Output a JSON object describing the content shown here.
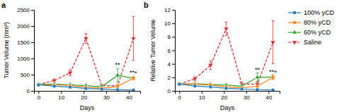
{
  "chart_data": [
    {
      "type": "line",
      "title": "a",
      "x_label": "Days",
      "y_label": "Tumor Volume (mm³)",
      "x": [
        0,
        7,
        14,
        21,
        28,
        35,
        42
      ],
      "xlim": [
        -2,
        45
      ],
      "xticks": [
        0,
        10,
        20,
        30,
        40
      ],
      "ylim": [
        0,
        2500
      ],
      "yticks": [
        0,
        500,
        1000,
        1500,
        2000,
        2500
      ],
      "series": [
        {
          "marker": "square",
          "line_style": "solid",
          "values": [
            185,
            145,
            115,
            75,
            55,
            35,
            25
          ],
          "errors": [
            22,
            18,
            14,
            10,
            8,
            7,
            6
          ]
        },
        {
          "marker": "square",
          "line_style": "solid",
          "values": [
            185,
            185,
            165,
            110,
            85,
            140,
            395
          ],
          "errors": [
            22,
            22,
            18,
            14,
            15,
            28,
            50
          ]
        },
        {
          "marker": "triangle-up",
          "line_style": "solid",
          "values": [
            200,
            210,
            190,
            160,
            130,
            480,
            390
          ],
          "errors": [
            25,
            25,
            20,
            18,
            20,
            200,
            55
          ]
        },
        {
          "marker": "triangle-down",
          "line_style": "dashed",
          "values": [
            200,
            320,
            560,
            1620,
            160,
            160,
            1620
          ],
          "errors": [
            30,
            50,
            90,
            150,
            40,
            40,
            680
          ]
        }
      ],
      "annotations": [
        {
          "text": "**",
          "x": 35,
          "y": 735
        },
        {
          "text": "**",
          "x": 42.5,
          "y": 500
        },
        {
          "text": "*",
          "x": 42.5,
          "y": 475
        }
      ]
    },
    {
      "type": "line",
      "title": "b",
      "x_label": "Days",
      "y_label": "Relative Tumor Volume",
      "x": [
        0,
        7,
        14,
        21,
        28,
        35,
        42
      ],
      "xlim": [
        -2,
        45
      ],
      "xticks": [
        0,
        10,
        20,
        30,
        40
      ],
      "ylim": [
        0,
        12
      ],
      "yticks": [
        0,
        2,
        4,
        6,
        8,
        10,
        12
      ],
      "legend": "right",
      "series": [
        {
          "name": "100% yCD",
          "marker": "square",
          "line_style": "solid",
          "values": [
            1.0,
            0.72,
            0.58,
            0.38,
            0.28,
            0.18,
            0.12
          ],
          "errors": [
            0.12,
            0.09,
            0.07,
            0.05,
            0.04,
            0.03,
            0.03
          ]
        },
        {
          "name": "80% yCD",
          "marker": "square",
          "line_style": "solid",
          "values": [
            1.0,
            0.98,
            0.88,
            0.58,
            0.45,
            0.68,
            2.0
          ],
          "errors": [
            0.12,
            0.12,
            0.1,
            0.08,
            0.09,
            0.13,
            0.32
          ]
        },
        {
          "name": "60% yCD",
          "marker": "triangle-up",
          "line_style": "solid",
          "values": [
            1.0,
            1.05,
            0.95,
            0.85,
            0.7,
            2.0,
            2.05
          ],
          "errors": [
            0.12,
            0.13,
            0.12,
            0.1,
            0.12,
            0.65,
            0.35
          ]
        },
        {
          "name": "Saline",
          "marker": "triangle-down",
          "line_style": "dashed",
          "values": [
            1.0,
            1.8,
            3.8,
            9.2,
            1.0,
            1.0,
            7.2
          ],
          "errors": [
            0.15,
            0.3,
            0.65,
            1.0,
            0.3,
            0.3,
            3.2
          ]
        }
      ],
      "annotations": [
        {
          "text": "**",
          "x": 35,
          "y": 2.77
        },
        {
          "text": "**",
          "x": 42.5,
          "y": 2.52
        },
        {
          "text": "*",
          "x": 42.5,
          "y": 2.44
        }
      ]
    }
  ]
}
